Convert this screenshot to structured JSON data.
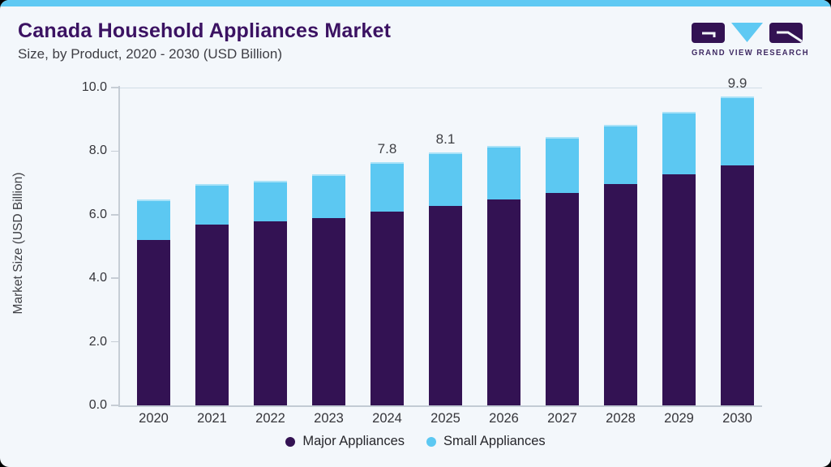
{
  "page": {
    "title": "Canada Household Appliances Market",
    "subtitle": "Size, by Product, 2020 - 2030 (USD Billion)"
  },
  "logo": {
    "wordmark": "GRAND VIEW RESEARCH"
  },
  "colors": {
    "background": "#f3f7fb",
    "top_accent": "#5fc9f3",
    "title_purple": "#3b1262",
    "bar_major_purple": "#331253",
    "bar_small_blue": "#5cc8f2",
    "axis_text": "#35353a",
    "axis_line": "#c6cdd5"
  },
  "chart_data": {
    "type": "bar",
    "stacked": true,
    "title": "Canada Household Appliances Market Size, by Product, 2020 - 2030 (USD Billion)",
    "categories": [
      "2020",
      "2021",
      "2022",
      "2023",
      "2024",
      "2025",
      "2026",
      "2027",
      "2028",
      "2029",
      "2030"
    ],
    "series": [
      {
        "name": "Major Appliances",
        "color": "#331253",
        "values": [
          5.3,
          5.8,
          5.9,
          6.0,
          6.2,
          6.4,
          6.6,
          6.8,
          7.1,
          7.4,
          7.7
        ]
      },
      {
        "name": "Small Appliances",
        "color": "#5cc8f2",
        "values": [
          1.3,
          1.3,
          1.3,
          1.4,
          1.6,
          1.7,
          1.7,
          1.8,
          1.9,
          2.0,
          2.2
        ]
      }
    ],
    "totals": [
      6.6,
      7.1,
      7.2,
      7.4,
      7.8,
      8.1,
      8.3,
      8.6,
      9.0,
      9.4,
      9.9
    ],
    "value_labels": {
      "2024": "7.8",
      "2025": "8.1",
      "2030": "9.9"
    },
    "ylabel": "Market Size (USD Billion)",
    "yticks": [
      "0.0",
      "2.0",
      "4.0",
      "6.0",
      "8.0",
      "10.0"
    ],
    "ylim": [
      0,
      10
    ],
    "grid": "off",
    "legend": [
      "Major Appliances",
      "Small Appliances"
    ],
    "legend_position": "bottom"
  }
}
